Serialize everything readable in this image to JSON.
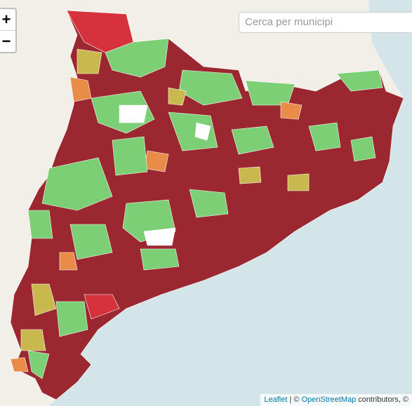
{
  "zoom": {
    "in": "+",
    "out": "−"
  },
  "search": {
    "placeholder": "Cerca per municipi"
  },
  "attribution": {
    "leaflet": "Leaflet",
    "separator": "| ©",
    "osm": "OpenStreetMap",
    "suffix": "contributors, ©"
  }
}
